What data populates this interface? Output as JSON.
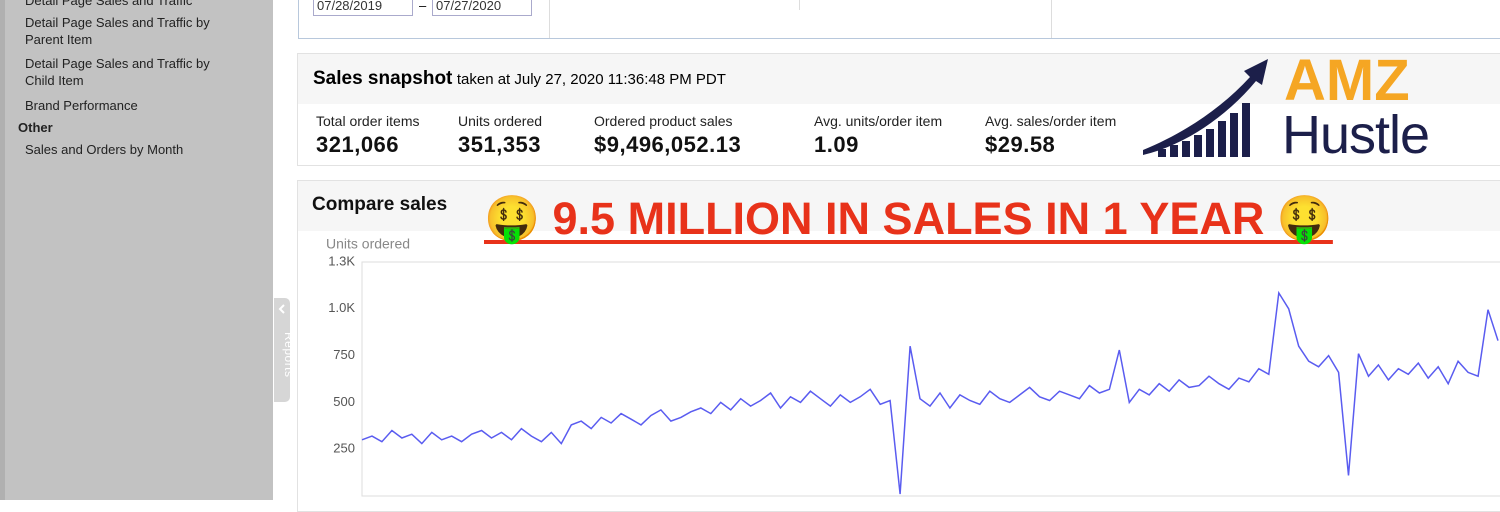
{
  "sidebar": {
    "items": [
      "Detail Page Sales and Traffic",
      "Detail Page Sales and Traffic by Parent Item",
      "Detail Page Sales and Traffic by Child Item",
      "Brand Performance"
    ],
    "section": "Other",
    "section_items": [
      "Sales and Orders by Month"
    ]
  },
  "tab": "Reports",
  "date_range": {
    "start": "07/28/2019",
    "separator": "–",
    "end": "07/27/2020"
  },
  "snapshot": {
    "title": "Sales snapshot",
    "timestamp": "taken at July 27, 2020 11:36:48 PM PDT",
    "metrics": [
      {
        "label": "Total order items",
        "value": "321,066"
      },
      {
        "label": "Units ordered",
        "value": "351,353"
      },
      {
        "label": "Ordered product sales",
        "value": "$9,496,052.13"
      },
      {
        "label": "Avg. units/order item",
        "value": "1.09"
      },
      {
        "label": "Avg. sales/order item",
        "value": "$29.58"
      }
    ]
  },
  "logo": {
    "line1": "AMZ",
    "line2": "Hustle"
  },
  "headline": "🤑 9.5 MILLION IN SALES IN 1 YEAR 🤑",
  "chart_data": {
    "type": "line",
    "title": "Compare sales",
    "y_label": "Units ordered",
    "color": "#5a5cf0",
    "ylim": [
      0,
      1250
    ],
    "yticks": [
      250,
      500,
      750,
      {
        "value": 1000,
        "label": "1.0K"
      },
      {
        "value": 1250,
        "label": "1.3K"
      }
    ],
    "values": [
      300,
      320,
      290,
      350,
      310,
      330,
      280,
      340,
      300,
      320,
      290,
      330,
      350,
      310,
      340,
      300,
      360,
      320,
      290,
      340,
      280,
      380,
      400,
      360,
      420,
      390,
      440,
      410,
      380,
      430,
      460,
      400,
      420,
      450,
      470,
      440,
      500,
      460,
      520,
      480,
      510,
      550,
      470,
      530,
      500,
      560,
      520,
      480,
      540,
      500,
      530,
      570,
      490,
      510,
      10,
      800,
      520,
      480,
      550,
      470,
      540,
      510,
      490,
      560,
      520,
      500,
      540,
      580,
      530,
      510,
      560,
      540,
      520,
      590,
      550,
      570,
      780,
      500,
      570,
      540,
      600,
      560,
      620,
      580,
      590,
      640,
      600,
      570,
      630,
      610,
      680,
      650,
      1085,
      1000,
      800,
      720,
      690,
      750,
      660,
      110,
      760,
      640,
      700,
      620,
      680,
      650,
      710,
      630,
      690,
      600,
      720,
      660,
      640,
      995,
      830
    ]
  }
}
